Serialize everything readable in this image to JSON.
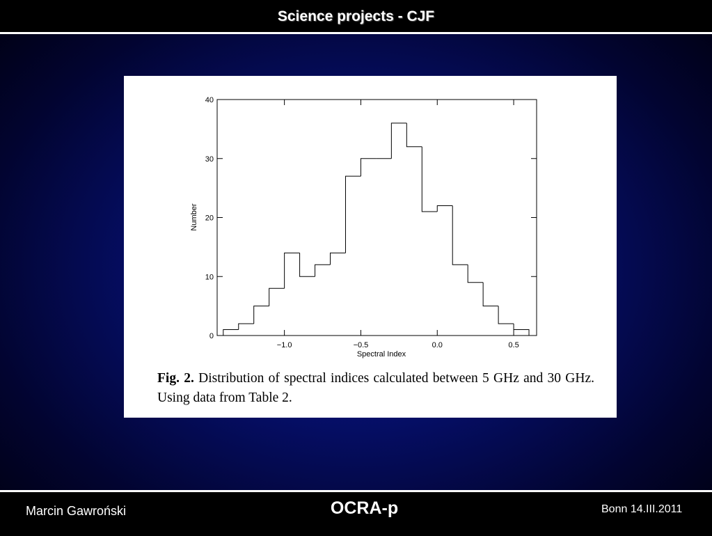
{
  "slide_title": "Science projects - CJF",
  "footer": {
    "author": "Marcin Gawroński",
    "project": "OCRA-p",
    "place_date": "Bonn 14.III.2011"
  },
  "chart_data": {
    "type": "histogram",
    "x_label": "Spectral Index",
    "y_label": "Number",
    "caption_label": "Fig. 2.",
    "caption_text": "Distribution of spectral indices calculated between 5 GHz and 30 GHz. Using data from Table 2.",
    "bins": [
      -1.4,
      -1.3,
      -1.2,
      -1.1,
      -1.0,
      -0.9,
      -0.8,
      -0.7,
      -0.6,
      -0.5,
      -0.4,
      -0.3,
      -0.2,
      -0.1,
      0.0,
      0.1,
      0.2,
      0.3,
      0.4,
      0.5,
      0.6
    ],
    "values": [
      1,
      2,
      5,
      8,
      14,
      10,
      12,
      14,
      27,
      30,
      30,
      36,
      32,
      21,
      22,
      12,
      9,
      5,
      2,
      1
    ],
    "color": "#000000",
    "xlim": [
      -1.44,
      0.65
    ],
    "ylim": [
      0,
      40
    ],
    "xticks": [
      {
        "value": -1.0,
        "label": "−1.0"
      },
      {
        "value": -0.5,
        "label": "−0.5"
      },
      {
        "value": 0.0,
        "label": "0.0"
      },
      0.5
    ],
    "yticks": [
      0,
      10,
      20,
      30,
      40
    ]
  }
}
